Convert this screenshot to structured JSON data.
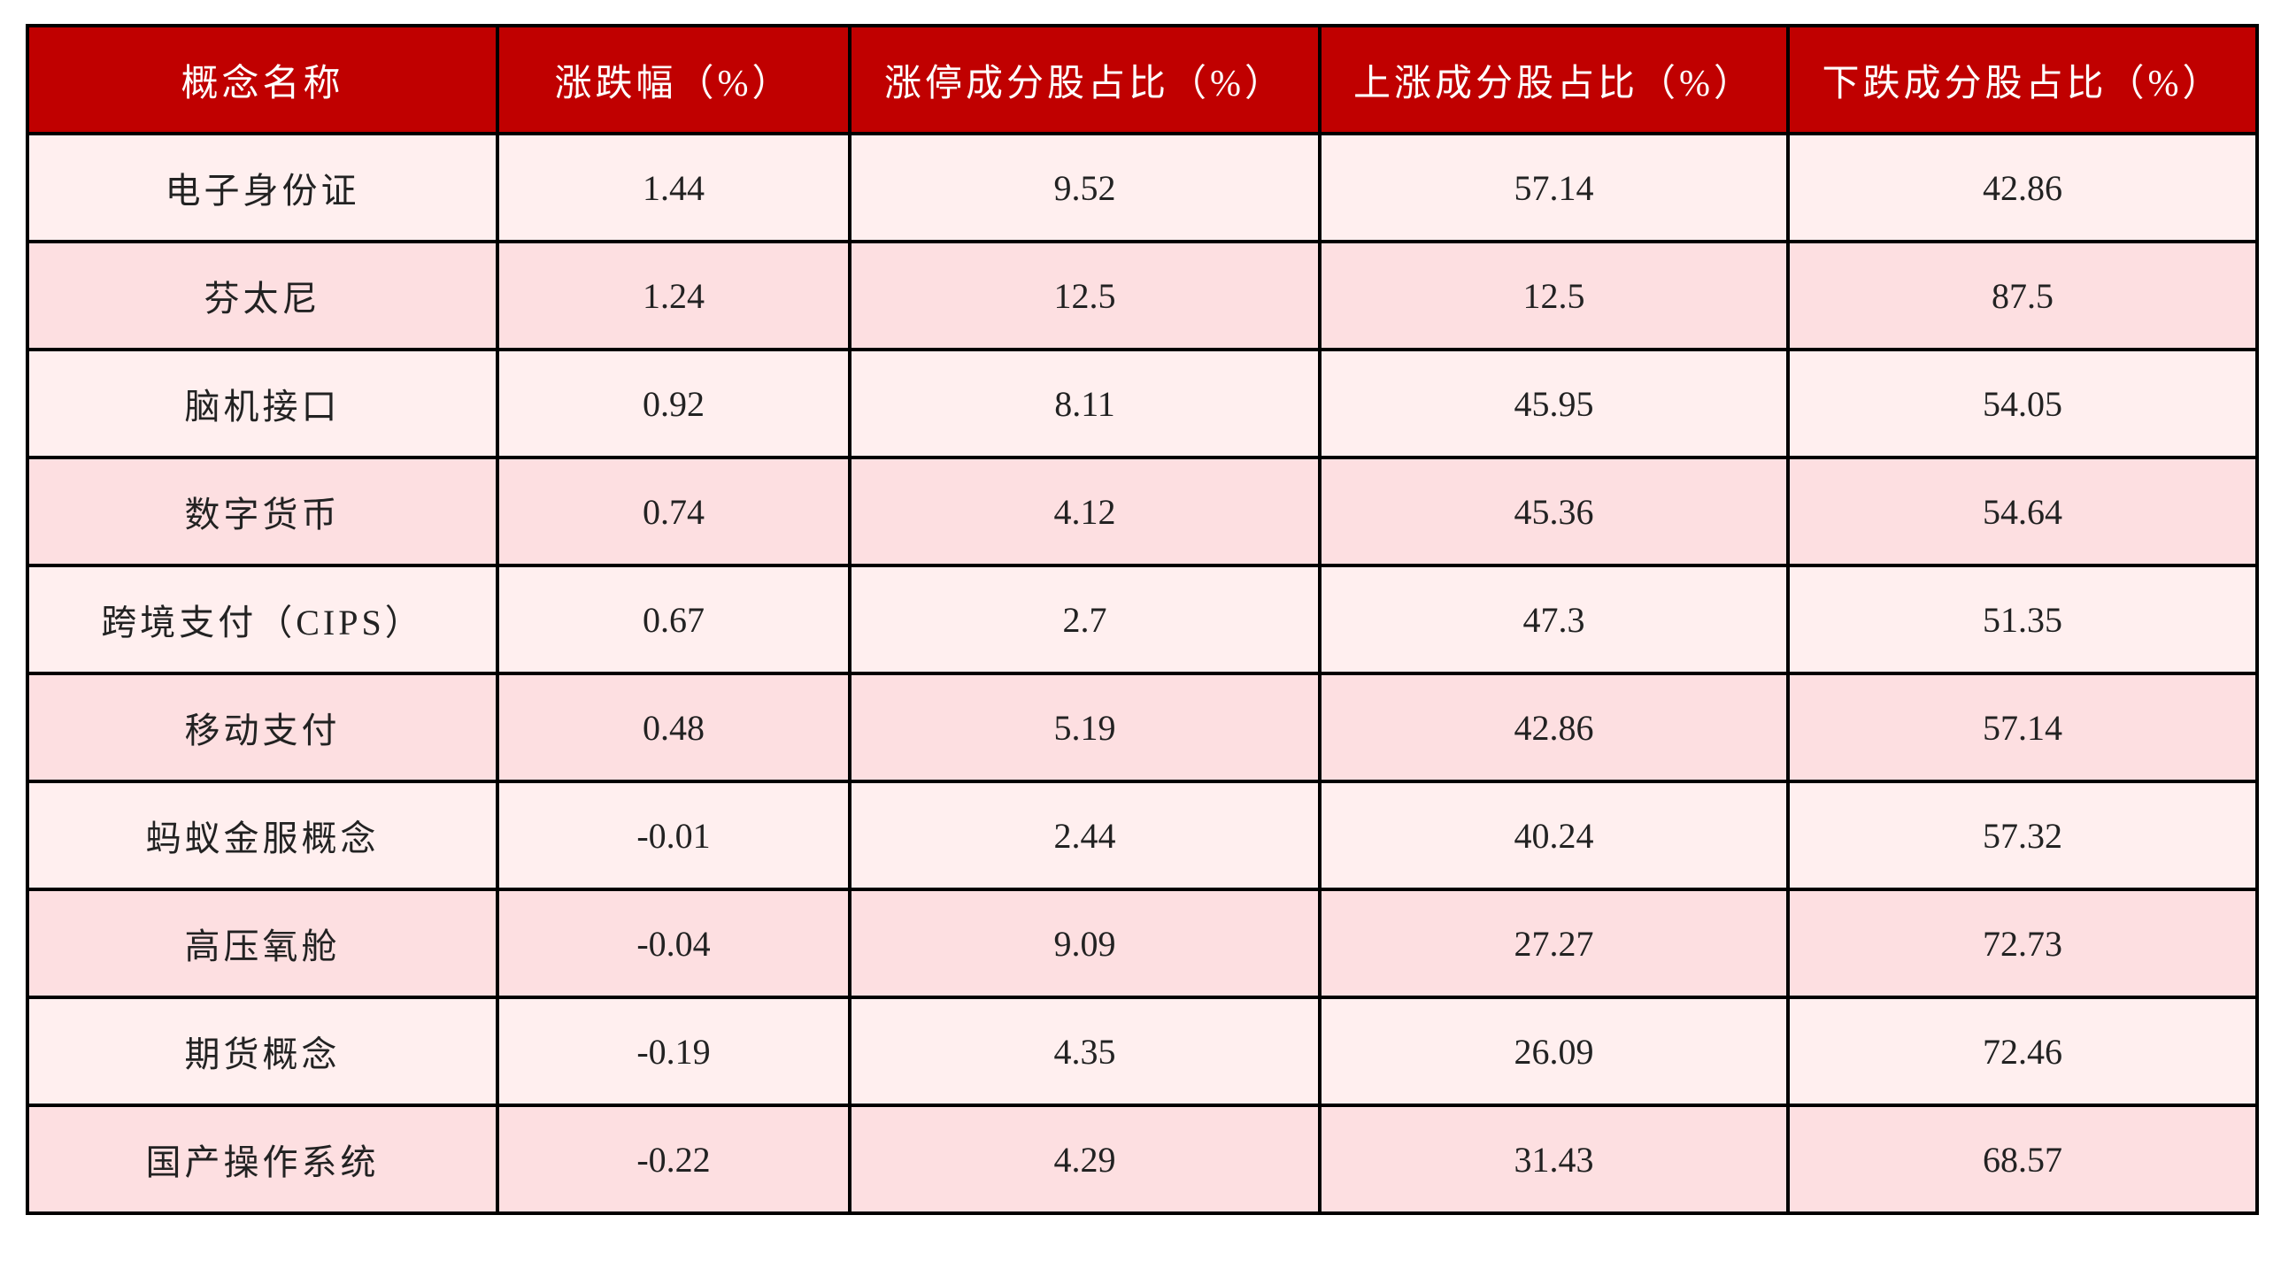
{
  "colors": {
    "header_bg": "#C00000",
    "row_odd": "#FFEFEF",
    "row_even": "#FDDFE1",
    "border": "#000000"
  },
  "table": {
    "headers": [
      "概念名称",
      "涨跌幅（%）",
      "涨停成分股占比（%）",
      "上涨成分股占比（%）",
      "下跌成分股占比（%）"
    ],
    "rows": [
      [
        "电子身份证",
        "1.44",
        "9.52",
        "57.14",
        "42.86"
      ],
      [
        "芬太尼",
        "1.24",
        "12.5",
        "12.5",
        "87.5"
      ],
      [
        "脑机接口",
        "0.92",
        "8.11",
        "45.95",
        "54.05"
      ],
      [
        "数字货币",
        "0.74",
        "4.12",
        "45.36",
        "54.64"
      ],
      [
        "跨境支付（CIPS）",
        "0.67",
        "2.7",
        "47.3",
        "51.35"
      ],
      [
        "移动支付",
        "0.48",
        "5.19",
        "42.86",
        "57.14"
      ],
      [
        "蚂蚁金服概念",
        "-0.01",
        "2.44",
        "40.24",
        "57.32"
      ],
      [
        "高压氧舱",
        "-0.04",
        "9.09",
        "27.27",
        "72.73"
      ],
      [
        "期货概念",
        "-0.19",
        "4.35",
        "26.09",
        "72.46"
      ],
      [
        "国产操作系统",
        "-0.22",
        "4.29",
        "31.43",
        "68.57"
      ]
    ]
  }
}
